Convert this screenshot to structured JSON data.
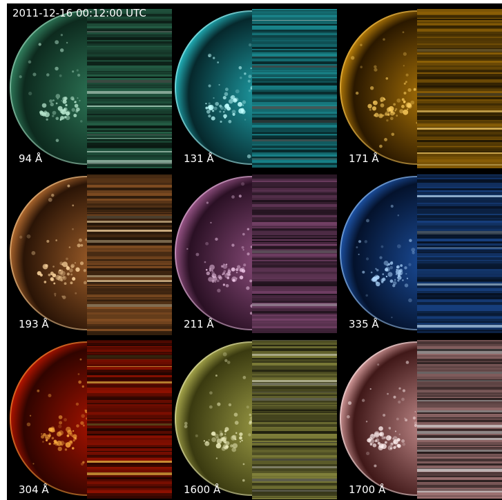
{
  "timestamp": "2011-12-16 00:12:00 UTC",
  "panels": [
    {
      "label": "94 Å"
    },
    {
      "label": "131 Å"
    },
    {
      "label": "171 Å"
    },
    {
      "label": "193 Å"
    },
    {
      "label": "211 Å"
    },
    {
      "label": "335 Å"
    },
    {
      "label": "304 Å"
    },
    {
      "label": "1600 Å"
    },
    {
      "label": "1700 Å"
    }
  ]
}
